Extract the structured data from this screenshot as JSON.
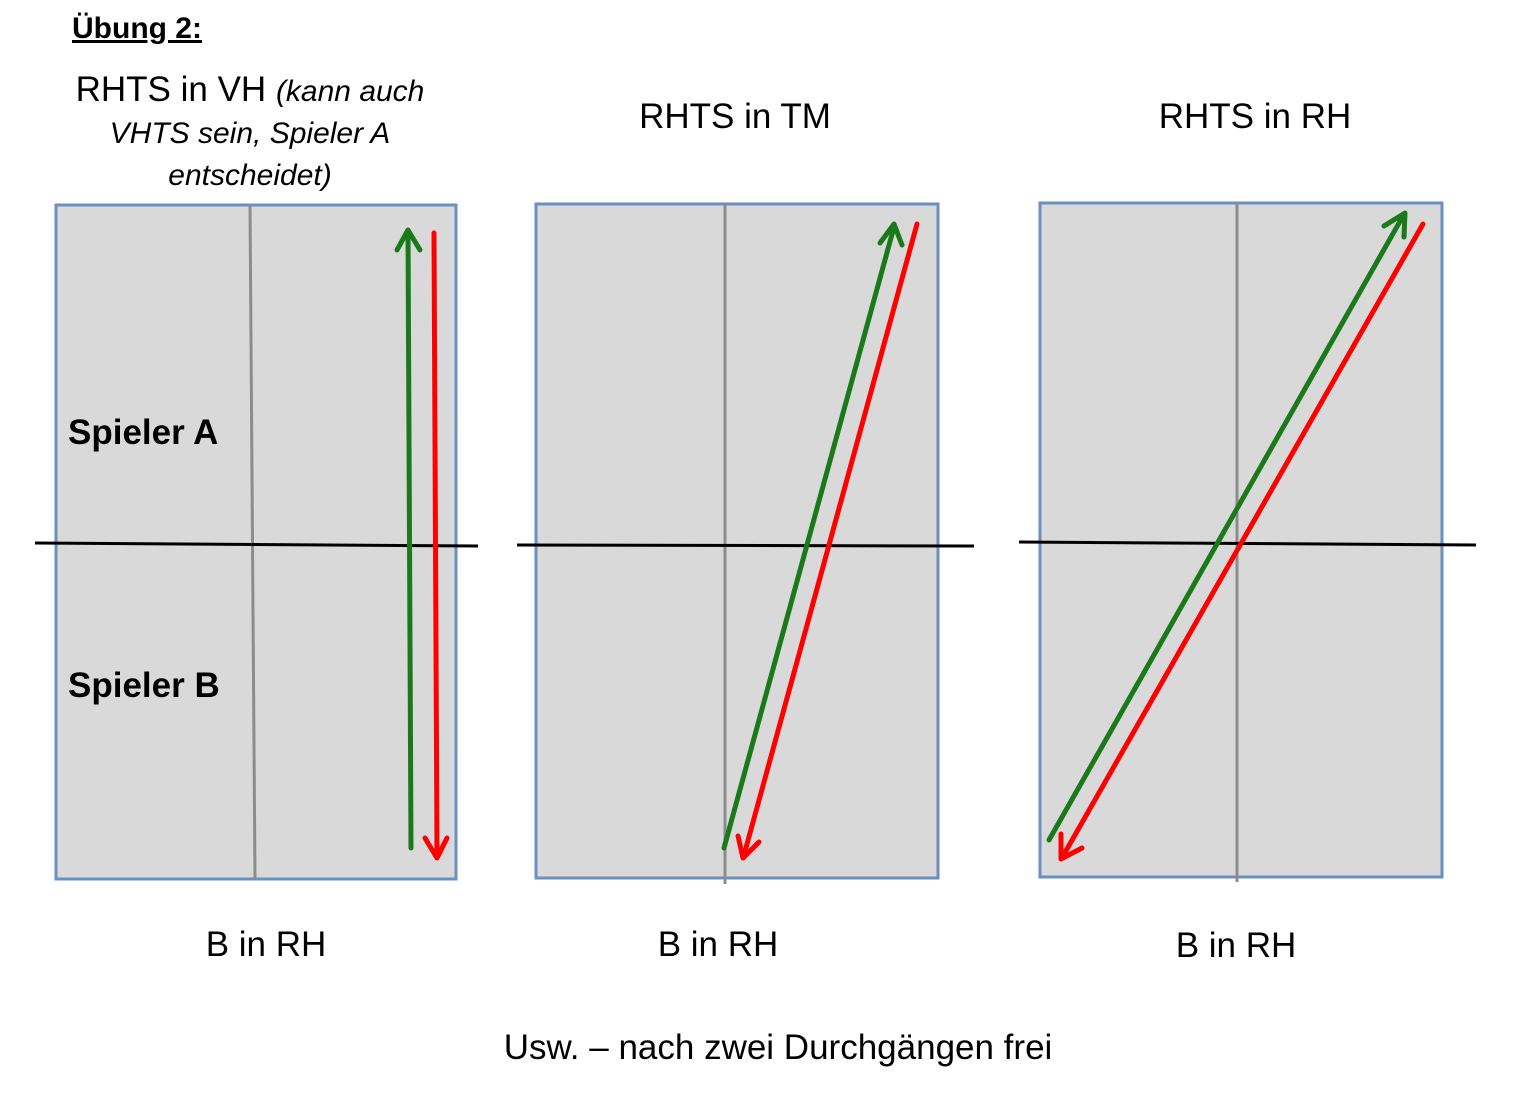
{
  "heading": "Übung 2:",
  "panels": [
    {
      "title_main": "RHTS in VH ",
      "title_note": "(kann auch VHTS sein, Spieler A entscheidet)",
      "bottom_label": "B in RH"
    },
    {
      "title_main": "RHTS in TM",
      "title_note": "",
      "bottom_label": "B in RH"
    },
    {
      "title_main": "RHTS in RH",
      "title_note": "",
      "bottom_label": "B in RH"
    }
  ],
  "player_a_label": "Spieler A",
  "player_b_label": "Spieler B",
  "footer": "Usw. – nach zwei Durchgängen frei",
  "colors": {
    "table_fill": "#d9d9d9",
    "table_border": "#6a8fc0",
    "center_line": "#8c8c8c",
    "net": "#000000",
    "green_arrow": "#1a7a1a",
    "red_arrow": "#ff0000"
  }
}
